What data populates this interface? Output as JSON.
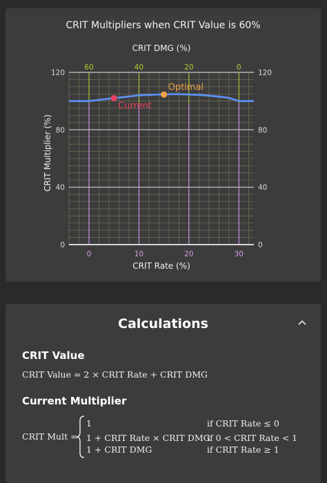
{
  "chart_card": {
    "title": "CRIT Multipliers when CRIT Value is 60%"
  },
  "chart_data": {
    "type": "line",
    "title": "CRIT Multipliers when CRIT Value is 60%",
    "xlabel": "CRIT Rate (%)",
    "x2label": "CRIT DMG (%)",
    "ylabel": "CRIT Multiplier (%)",
    "xlim": [
      -4,
      33
    ],
    "ylim": [
      0,
      120
    ],
    "x_ticks": [
      0,
      10,
      20,
      30
    ],
    "x2_ticks": [
      {
        "at": 0,
        "label": "60"
      },
      {
        "at": 10,
        "label": "40"
      },
      {
        "at": 20,
        "label": "20"
      },
      {
        "at": 30,
        "label": "0"
      }
    ],
    "y_ticks": [
      0,
      40,
      80,
      120
    ],
    "grid": true,
    "series": [
      {
        "color": "#5b8ff0",
        "x": [
          -4,
          0,
          2,
          4,
          6,
          8,
          10,
          12,
          14,
          16,
          18,
          20,
          22,
          24,
          26,
          28,
          30,
          33
        ],
        "y": [
          100,
          100,
          100.8,
          101.6,
          102.4,
          103.2,
          104,
          104.3,
          104.6,
          104.8,
          104.8,
          104.6,
          104.3,
          103.8,
          103.1,
          102.2,
          100,
          100
        ]
      }
    ],
    "points": [
      {
        "label": "Current",
        "x": 5,
        "y": 102,
        "color": "#e8415f"
      },
      {
        "label": "Optimal",
        "x": 15,
        "y": 104.5,
        "color": "#f0a04b"
      }
    ],
    "colors": {
      "x_axis_ticks": "#d69be8",
      "x2_axis_ticks": "#b5c834",
      "grid_fine": "#7a7a5a",
      "grid_major": "#cccccc"
    }
  },
  "calc_card": {
    "title": "Calculations",
    "collapse_icon": "chevron-up-icon",
    "crit_value": {
      "heading": "CRIT Value",
      "formula": "CRIT Value = 2 × CRIT Rate + CRIT DMG"
    },
    "current_multiplier": {
      "heading": "Current Multiplier",
      "lhs": "CRIT Mult =",
      "cases": [
        {
          "expr": "1",
          "cond": "if CRIT Rate ≤ 0"
        },
        {
          "expr": "1 + CRIT Rate × CRIT DMG",
          "cond": "if 0 < CRIT Rate < 1"
        },
        {
          "expr": "1 + CRIT DMG",
          "cond": "if CRIT Rate ≥ 1"
        }
      ]
    }
  }
}
